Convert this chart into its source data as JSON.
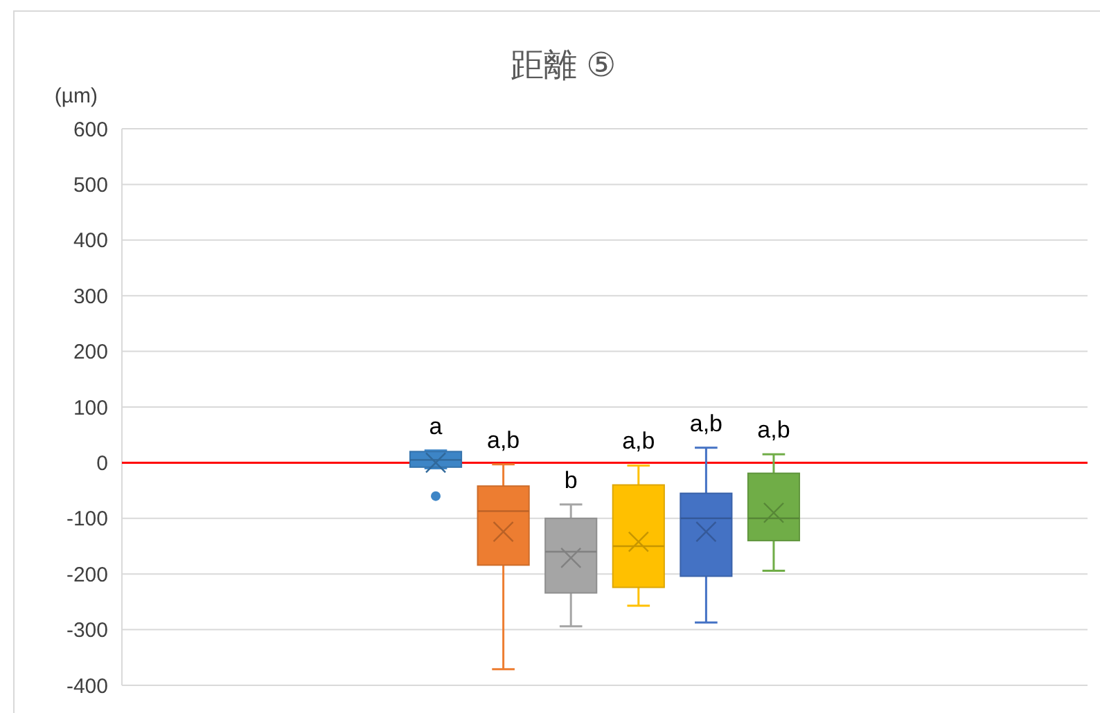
{
  "chart_data": {
    "type": "box",
    "title": "距離 ⑤",
    "ylabel": "(µm)",
    "categories": [
      null
    ],
    "ylim": [
      -400,
      600
    ],
    "yticks": [
      -400,
      -300,
      -200,
      -100,
      0,
      100,
      200,
      300,
      400,
      500,
      600
    ],
    "grid": "y",
    "series": [
      {
        "color": "#3d85c6",
        "boxes": [
          {
            "low": -10,
            "q1": -8,
            "median": 5,
            "q3": 20,
            "high": 22,
            "mean": 0,
            "outliers": [
              -60
            ]
          }
        ]
      },
      {
        "color": "#ed7d31",
        "boxes": [
          {
            "low": -371,
            "q1": -184,
            "median": -87,
            "q3": -42,
            "high": -3,
            "mean": -124
          }
        ]
      },
      {
        "color": "#a5a5a5",
        "boxes": [
          {
            "low": -294,
            "q1": -234,
            "median": -160,
            "q3": -100,
            "high": -75,
            "mean": -171
          }
        ]
      },
      {
        "color": "#ffc000",
        "boxes": [
          {
            "low": -257,
            "q1": -224,
            "median": -150,
            "q3": -40,
            "high": -5,
            "mean": -142
          }
        ]
      },
      {
        "color": "#4472c4",
        "boxes": [
          {
            "low": -287,
            "q1": -204,
            "median": -100,
            "q3": -55,
            "high": 27,
            "mean": -124
          }
        ]
      },
      {
        "color": "#70ad47",
        "boxes": [
          {
            "low": -194,
            "q1": -140,
            "median": -100,
            "q3": -19,
            "high": 15,
            "mean": -90
          }
        ]
      }
    ],
    "ref_lines": [
      {
        "axis": "y",
        "value": 0,
        "color": "#ff0000"
      }
    ],
    "annotations": [
      "a",
      "a,b",
      "b",
      "a,b",
      "a,b",
      "a,b"
    ]
  }
}
